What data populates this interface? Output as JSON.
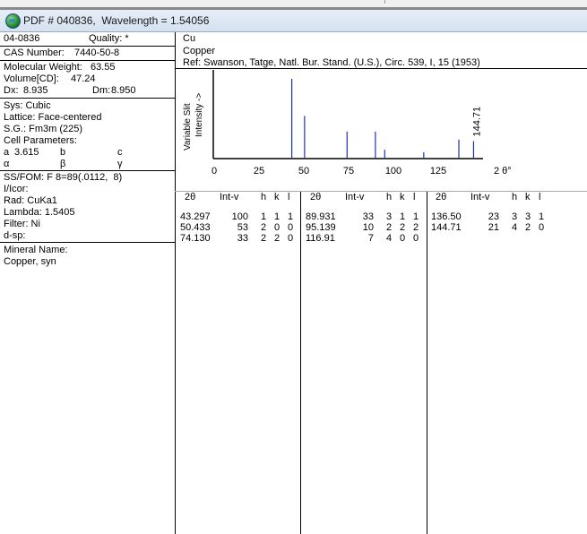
{
  "window": {
    "title": "PDF # 040836,  Wavelength = 1.54056"
  },
  "left": {
    "pdf_number": "04-0836",
    "quality": "Quality: *",
    "cas_label": "CAS Number:",
    "cas_value": "7440-50-8",
    "mol_weight_label": "Molecular Weight:",
    "mol_weight_value": "63.55",
    "volume_label": "Volume[CD]:",
    "volume_value": "47.24",
    "dx_label": "Dx:",
    "dx_value": "8.935",
    "dm_label": "Dm:",
    "dm_value": "8.950",
    "sys": "Sys: Cubic",
    "lattice": "Lattice: Face-centered",
    "sg": "S.G.: Fm3m (225)",
    "cell_params": "Cell Parameters:",
    "a_label": "a",
    "a_value": "3.615",
    "b_label": "b",
    "c_label": "c",
    "alpha": "α",
    "beta": "β",
    "gamma": "γ",
    "ssfom": "SS/FOM: F 8=89(.0112,  8)",
    "iicor": "I/Icor:",
    "rad": "Rad: CuKa1",
    "lambda": "Lambda: 1.5405",
    "filter": "Filter: Ni",
    "dsp": "d-sp:",
    "mineral_label": "Mineral Name:",
    "mineral_value": "Copper, syn"
  },
  "header": {
    "formula": "Cu",
    "name": "Copper",
    "ref": "Ref: Swanson, Tatge, Natl. Bur. Stand. (U.S.), Circ. 539, I, 15 (1953)"
  },
  "chart_data": {
    "type": "bar",
    "ylabel": "Variable Slit\nIntensity ->",
    "ylabel_line1": "Variable Slit",
    "ylabel_line2": "Intensity ->",
    "xlabel": "2 θ°",
    "xlim": [
      0,
      150
    ],
    "ylim": [
      0,
      100
    ],
    "xticks": [
      "0",
      "25",
      "50",
      "75",
      "100",
      "125"
    ],
    "xtick_values": [
      0,
      25,
      50,
      75,
      100,
      125
    ],
    "annotation": "144.71",
    "x": [
      43.297,
      50.433,
      74.13,
      89.931,
      95.139,
      116.91,
      136.5,
      144.71
    ],
    "values": [
      100,
      53,
      33,
      33,
      10,
      7,
      23,
      21
    ],
    "bar_color": "#1f2fb8"
  },
  "table": {
    "headers": [
      "2θ",
      "Int-v",
      "h",
      "k",
      "l"
    ],
    "columns": [
      [
        [
          "43.297",
          "100",
          "1",
          "1",
          "1"
        ],
        [
          "50.433",
          "53",
          "2",
          "0",
          "0"
        ],
        [
          "74.130",
          "33",
          "2",
          "2",
          "0"
        ]
      ],
      [
        [
          "89.931",
          "33",
          "3",
          "1",
          "1"
        ],
        [
          "95.139",
          "10",
          "2",
          "2",
          "2"
        ],
        [
          "116.91",
          "7",
          "4",
          "0",
          "0"
        ]
      ],
      [
        [
          "136.50",
          "23",
          "3",
          "3",
          "1"
        ],
        [
          "144.71",
          "21",
          "4",
          "2",
          "0"
        ]
      ]
    ]
  }
}
